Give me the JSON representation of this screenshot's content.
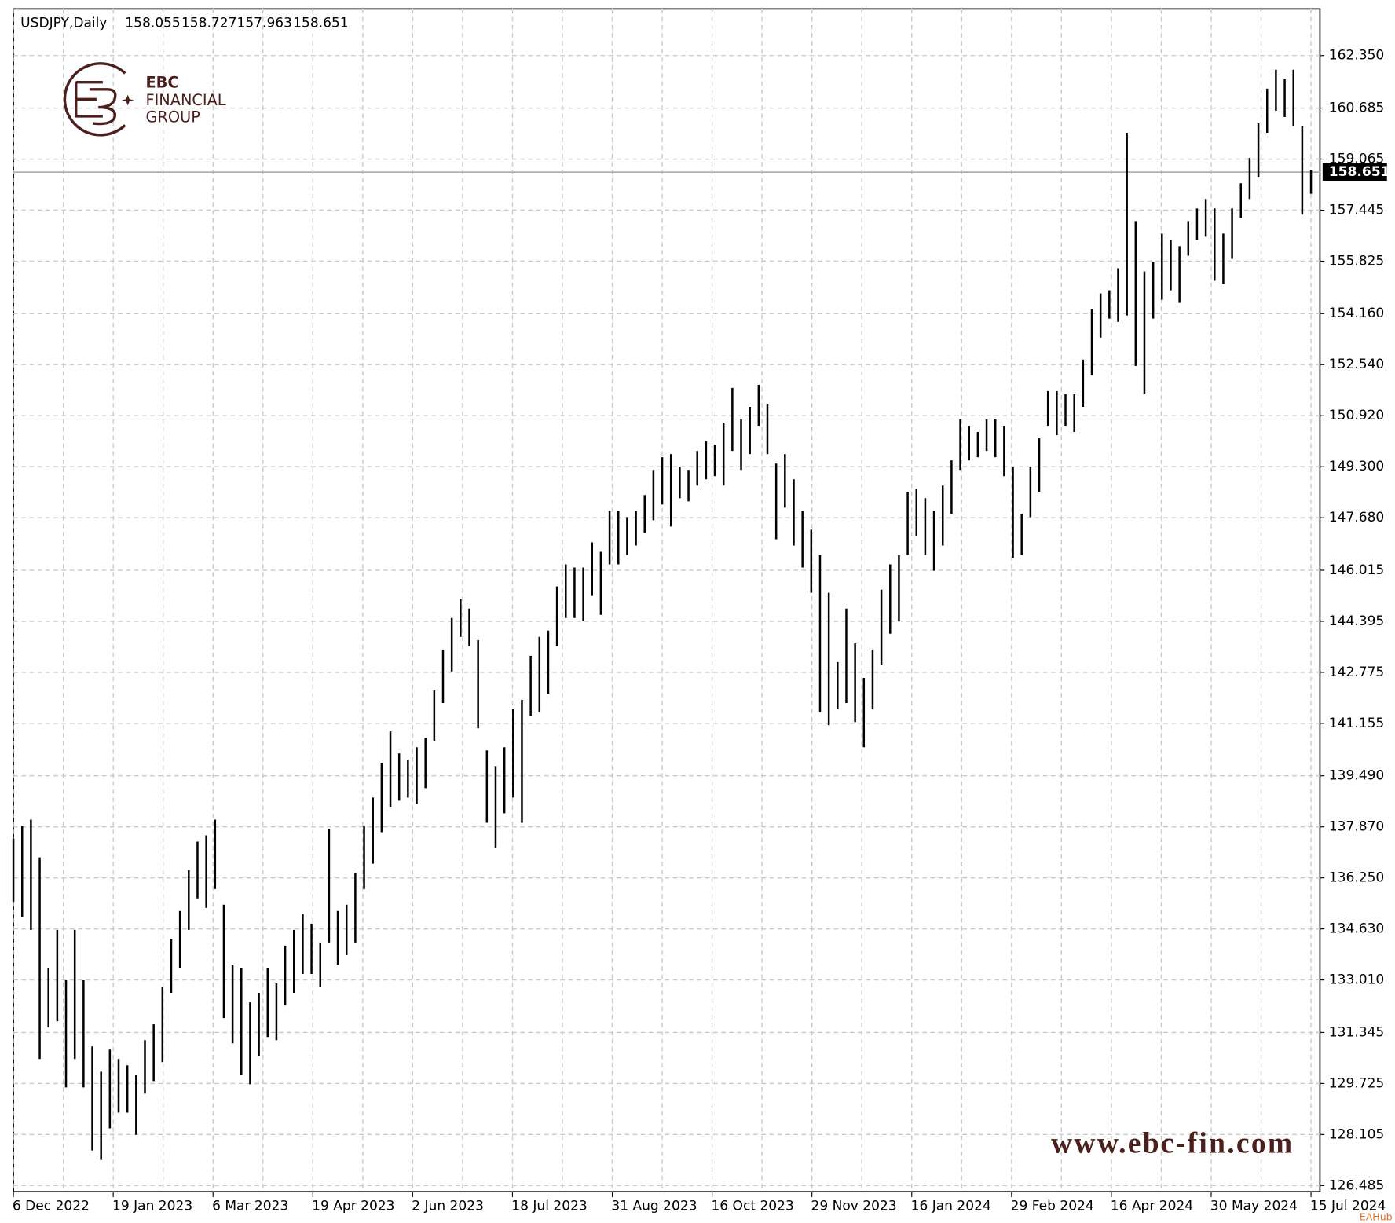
{
  "chart_data": {
    "type": "range-bar",
    "title": "USDJPY,Daily",
    "header_values": [
      158.055,
      158.727,
      157.963,
      158.651
    ],
    "current_price": 158.651,
    "color": "#000000",
    "grid": true,
    "logo": {
      "name": "EBC",
      "line1": "FINANCIAL",
      "line2": "GROUP"
    },
    "watermark": "www.ebc-fin.com",
    "source_badge": "EAHub",
    "ylim": [
      126.29,
      163.83
    ],
    "yticks": [
      {
        "value": 162.35,
        "label": "162.350"
      },
      160.685,
      159.065,
      157.445,
      155.825,
      {
        "value": 154.16,
        "label": "154.160"
      },
      {
        "value": 152.54,
        "label": "152.540"
      },
      {
        "value": 150.92,
        "label": "150.920"
      },
      {
        "value": 149.3,
        "label": "149.300"
      },
      {
        "value": 147.68,
        "label": "147.680"
      },
      146.015,
      144.395,
      142.775,
      141.155,
      {
        "value": 139.49,
        "label": "139.490"
      },
      {
        "value": 137.87,
        "label": "137.870"
      },
      {
        "value": 136.25,
        "label": "136.250"
      },
      {
        "value": 134.63,
        "label": "134.630"
      },
      {
        "value": 133.01,
        "label": "133.010"
      },
      131.345,
      129.725,
      128.105,
      126.485
    ],
    "x_labels": [
      "6 Dec 2022",
      "19 Jan 2023",
      "6 Mar 2023",
      "19 Apr 2023",
      "2 Jun 2023",
      "18 Jul 2023",
      "31 Aug 2023",
      "16 Oct 2023",
      "29 Nov 2023",
      "16 Jan 2024",
      "29 Feb 2024",
      "16 Apr 2024",
      "30 May 2024",
      "15 Jul 2024"
    ],
    "high": [
      137.5,
      137.9,
      138.1,
      136.9,
      133.4,
      134.6,
      133,
      134.6,
      133,
      130.9,
      130.1,
      130.8,
      130.5,
      130.3,
      130,
      131.1,
      131.6,
      132.8,
      134.3,
      135.2,
      136.5,
      137.4,
      137.6,
      138.1,
      135.4,
      133.5,
      133.4,
      132.3,
      132.6,
      133.4,
      132.9,
      134.1,
      134.6,
      135.1,
      134.8,
      134.2,
      137.8,
      135.2,
      135.4,
      136.4,
      137.9,
      138.8,
      139.9,
      140.9,
      140.2,
      140,
      140.4,
      140.7,
      142.2,
      143.5,
      144.5,
      145.1,
      144.8,
      143.8,
      140.3,
      139.8,
      140.4,
      141.6,
      141.9,
      143.3,
      143.9,
      144.1,
      145.5,
      146.2,
      146.1,
      146.1,
      146.9,
      146.6,
      147.9,
      147.9,
      147.7,
      147.9,
      148.4,
      149.2,
      149.6,
      149.7,
      149.3,
      149.2,
      149.8,
      150.1,
      150,
      150.7,
      151.8,
      150.8,
      151.2,
      151.9,
      151.3,
      149.4,
      149.7,
      148.9,
      147.9,
      147.3,
      146.5,
      145.3,
      143.1,
      144.8,
      143.7,
      142.6,
      143.5,
      145.4,
      146.2,
      146.5,
      148.5,
      148.6,
      148.3,
      147.9,
      148.7,
      149.5,
      150.8,
      150.6,
      150.4,
      150.8,
      150.8,
      150.6,
      149.3,
      147.8,
      149.3,
      150.2,
      151.7,
      151.7,
      151.6,
      151.6,
      152.7,
      154.3,
      154.8,
      154.9,
      155.6,
      159.9,
      157.1,
      155.5,
      155.8,
      156.7,
      156.5,
      156.3,
      157.1,
      157.5,
      157.8,
      157.5,
      156.7,
      157.5,
      158.3,
      159.1,
      160.2,
      161.3,
      161.9,
      161.6,
      161.9,
      160.1,
      158.727
    ],
    "low": [
      135.5,
      135,
      134.6,
      130.5,
      131.5,
      131.7,
      129.6,
      130.5,
      129.6,
      127.6,
      127.3,
      128.3,
      128.8,
      128.8,
      128.1,
      129.4,
      129.8,
      130.4,
      132.6,
      133.4,
      134.6,
      135.6,
      135.3,
      135.9,
      131.8,
      131,
      130,
      129.7,
      130.6,
      131.2,
      131.1,
      132.2,
      132.6,
      133.2,
      133.2,
      132.8,
      134.2,
      133.5,
      133.8,
      134.2,
      135.9,
      136.7,
      137.7,
      138.5,
      138.7,
      138.8,
      138.6,
      139.1,
      140.6,
      141.8,
      142.8,
      143.9,
      143.6,
      141,
      138,
      137.2,
      138.3,
      138.8,
      138,
      141.4,
      141.5,
      142.1,
      143.6,
      144.5,
      144.5,
      144.4,
      145.2,
      144.6,
      146.2,
      146.2,
      146.5,
      146.8,
      147.2,
      147.6,
      148.1,
      147.4,
      148.3,
      148.2,
      148.7,
      148.9,
      149,
      148.7,
      149.8,
      149.2,
      149.7,
      150.6,
      149.7,
      147,
      148,
      146.8,
      146.1,
      145.3,
      141.5,
      141.1,
      141.6,
      141.8,
      141.2,
      140.4,
      141.6,
      143,
      144,
      144.4,
      146.5,
      147.1,
      146.5,
      146,
      146.8,
      147.8,
      149.2,
      149.5,
      149.6,
      149.8,
      149.6,
      149,
      146.4,
      146.5,
      147.7,
      148.5,
      150.6,
      150.3,
      150.6,
      150.4,
      151.2,
      152.2,
      153.4,
      154,
      153.9,
      154.1,
      152.5,
      151.6,
      154,
      154.6,
      154.9,
      154.5,
      156,
      156.5,
      156.6,
      155.2,
      155.1,
      155.9,
      157.2,
      157.8,
      158.5,
      159.9,
      160.6,
      160.4,
      160.1,
      157.3,
      157.963
    ]
  }
}
